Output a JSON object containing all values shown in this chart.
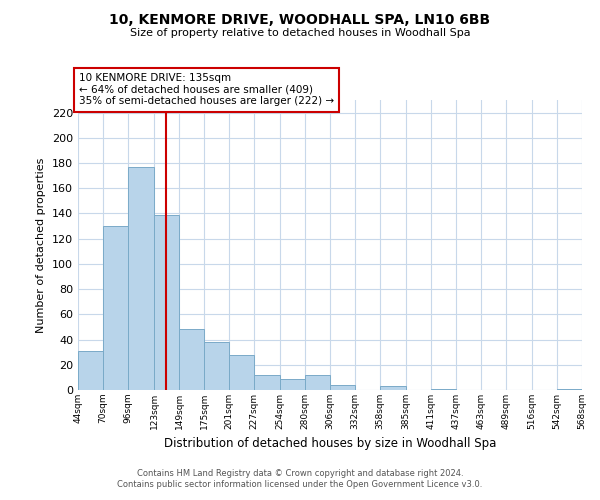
{
  "title": "10, KENMORE DRIVE, WOODHALL SPA, LN10 6BB",
  "subtitle": "Size of property relative to detached houses in Woodhall Spa",
  "xlabel": "Distribution of detached houses by size in Woodhall Spa",
  "ylabel": "Number of detached properties",
  "bar_color": "#b8d4ea",
  "bar_edge_color": "#7aaac8",
  "vline_x": 135,
  "vline_color": "#cc0000",
  "annotation_lines": [
    "10 KENMORE DRIVE: 135sqm",
    "← 64% of detached houses are smaller (409)",
    "35% of semi-detached houses are larger (222) →"
  ],
  "bin_edges": [
    44,
    70,
    96,
    123,
    149,
    175,
    201,
    227,
    254,
    280,
    306,
    332,
    358,
    385,
    411,
    437,
    463,
    489,
    516,
    542,
    568
  ],
  "bin_counts": [
    31,
    130,
    177,
    139,
    48,
    38,
    28,
    12,
    9,
    12,
    4,
    0,
    3,
    0,
    1,
    0,
    0,
    0,
    0,
    1
  ],
  "ylim": [
    0,
    230
  ],
  "yticks": [
    0,
    20,
    40,
    60,
    80,
    100,
    120,
    140,
    160,
    180,
    200,
    220
  ],
  "background_color": "#ffffff",
  "grid_color": "#c8d8ea",
  "footer_line1": "Contains HM Land Registry data © Crown copyright and database right 2024.",
  "footer_line2": "Contains public sector information licensed under the Open Government Licence v3.0."
}
